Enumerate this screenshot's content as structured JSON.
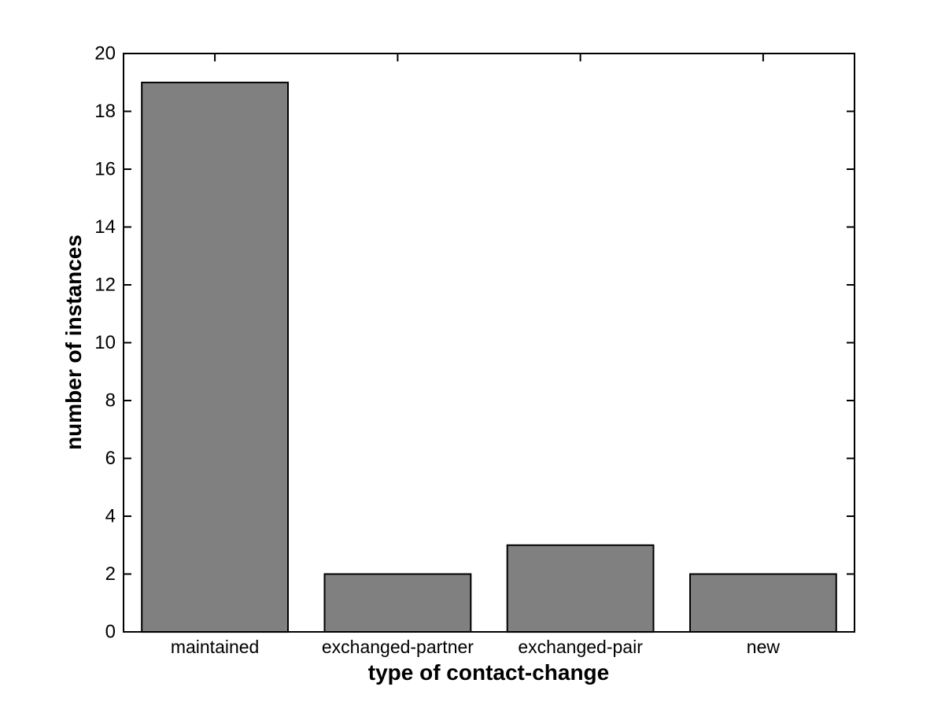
{
  "chart_data": {
    "type": "bar",
    "title": "",
    "categories": [
      "maintained",
      "exchanged-partner",
      "exchanged-pair",
      "new"
    ],
    "values": [
      19,
      2,
      3,
      2
    ],
    "xlabel": "type of contact-change",
    "ylabel": "number of instances",
    "ylim": [
      0,
      20
    ],
    "yticks": [
      0,
      2,
      4,
      6,
      8,
      10,
      12,
      14,
      16,
      18,
      20
    ],
    "grid": false,
    "legend_position": "none",
    "bar_width_fraction": 0.8,
    "colors": {
      "bar_fill": "#808080",
      "bar_edge": "#000000",
      "axis": "#000000",
      "background": "#ffffff",
      "text": "#000000"
    }
  }
}
